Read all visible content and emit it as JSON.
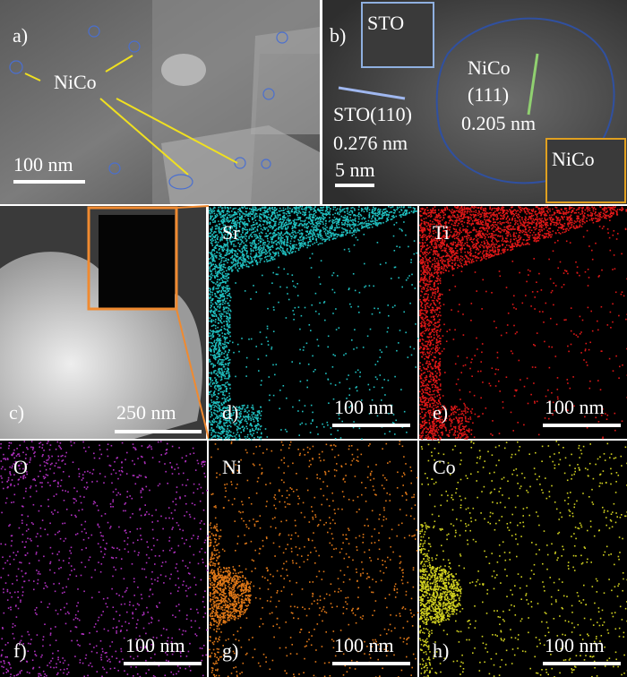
{
  "panels": [
    {
      "label": "a)",
      "scale_bar": "100 nm",
      "annotations": [
        "NiCo"
      ]
    },
    {
      "label": "b)",
      "scale_bar": "5 nm",
      "annotations": [
        "STO",
        "NiCo",
        "(111)",
        "0.205 nm",
        "STO(110)",
        "0.276 nm",
        "NiCo"
      ]
    },
    {
      "label": "c)",
      "scale_bar": "250 nm"
    },
    {
      "label": "d)",
      "element": "Sr",
      "scale_bar": "100 nm"
    },
    {
      "label": "e)",
      "element": "Ti",
      "scale_bar": "100 nm"
    },
    {
      "label": "f)",
      "element": "O",
      "scale_bar": "100 nm"
    },
    {
      "label": "g)",
      "element": "Ni",
      "scale_bar": "100 nm"
    },
    {
      "label": "h)",
      "element": "Co",
      "scale_bar": "100 nm"
    }
  ]
}
